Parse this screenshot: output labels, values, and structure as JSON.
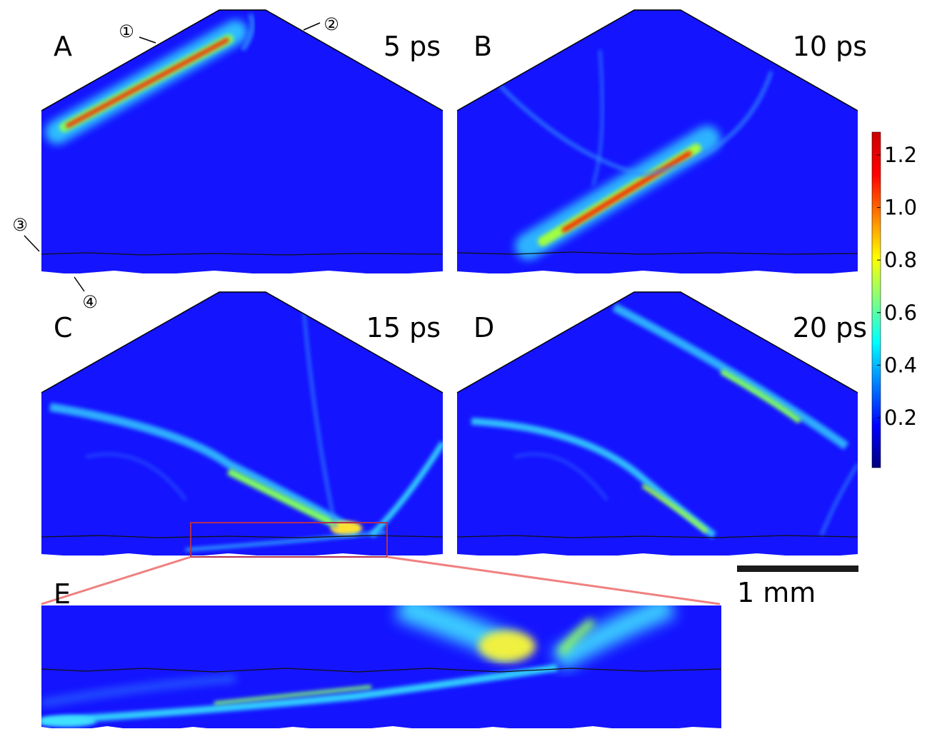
{
  "panels": [
    {
      "letter": "A",
      "time": "5 ps"
    },
    {
      "letter": "B",
      "time": "10 ps"
    },
    {
      "letter": "C",
      "time": "15 ps"
    },
    {
      "letter": "D",
      "time": "20 ps"
    },
    {
      "letter": "E",
      "time": ""
    }
  ],
  "callouts": [
    "①",
    "②",
    "③",
    "④"
  ],
  "colorbar": {
    "ticks": [
      "1.2",
      "1.0",
      "0.8",
      "0.6",
      "0.4",
      "0.2"
    ],
    "colors": [
      "#00007f",
      "#0000ff",
      "#007fff",
      "#00ffff",
      "#7fff7f",
      "#ffff00",
      "#ff7f00",
      "#ff0000",
      "#cc0000"
    ]
  },
  "scale_bar": {
    "label": "1 mm"
  },
  "colors": {
    "background": "#1414ff",
    "zoom_box": "#b03050",
    "zoom_lines": "#f08080"
  }
}
